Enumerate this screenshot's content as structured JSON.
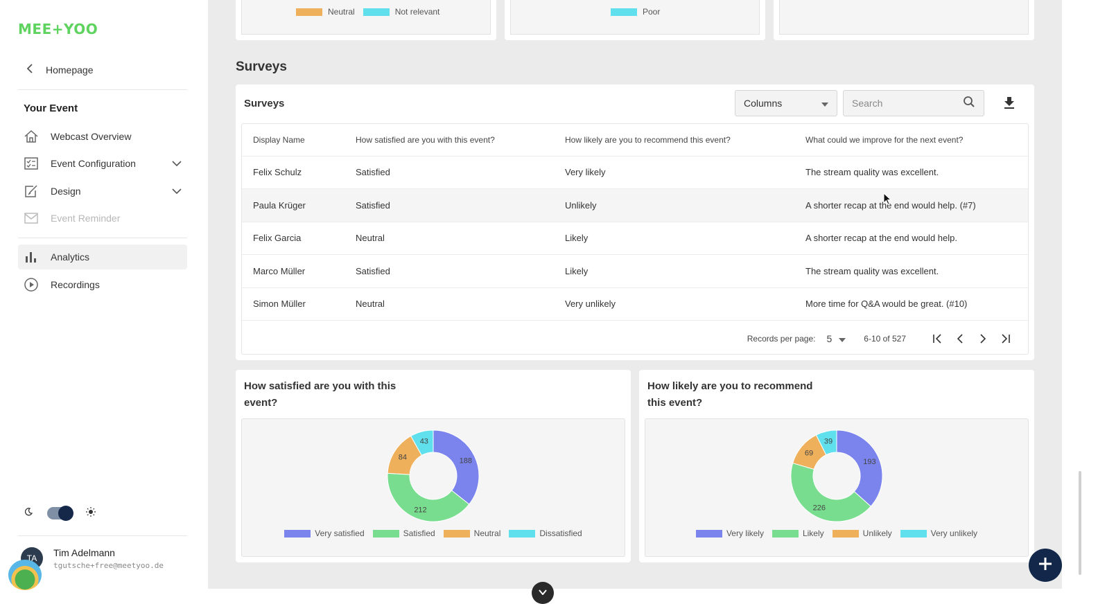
{
  "brand": {
    "logo_text": "MEE+YOO"
  },
  "nav": {
    "back_label": "Homepage",
    "section_title": "Your Event",
    "items": [
      {
        "label": "Webcast Overview",
        "icon": "home-icon"
      },
      {
        "label": "Event Configuration",
        "icon": "checklist-icon"
      },
      {
        "label": "Design",
        "icon": "edit-icon"
      },
      {
        "label": "Event Reminder",
        "icon": "mail-icon"
      },
      {
        "label": "Analytics",
        "icon": "bar-chart-icon"
      },
      {
        "label": "Recordings",
        "icon": "play-circle-icon"
      }
    ]
  },
  "user": {
    "initials": "TA",
    "name": "Tim Adelmann",
    "email": "tgutsche+free@meetyoo.de"
  },
  "top_legends": {
    "card1": [
      "Neutral",
      "Not relevant"
    ],
    "card2": [
      "Poor"
    ]
  },
  "surveys": {
    "heading": "Surveys",
    "card_title": "Surveys",
    "columns_label": "Columns",
    "search_placeholder": "Search",
    "headers": [
      "Display Name",
      "How satisfied are you with this event?",
      "How likely are you to recommend this event?",
      "What could we improve for the next event?"
    ],
    "rows": [
      [
        "Felix Schulz",
        "Satisfied",
        "Very likely",
        "The stream quality was excellent."
      ],
      [
        "Paula Krüger",
        "Satisfied",
        "Unlikely",
        "A shorter recap at the end would help. (#7)"
      ],
      [
        "Felix Garcia",
        "Neutral",
        "Likely",
        "A shorter recap at the end would help."
      ],
      [
        "Marco Müller",
        "Satisfied",
        "Likely",
        "The stream quality was excellent."
      ],
      [
        "Simon Müller",
        "Neutral",
        "Very unlikely",
        "More time for Q&A would be great. (#10)"
      ]
    ],
    "records_per_page_label": "Records per page:",
    "records_per_page": "5",
    "range": "6-10 of 527"
  },
  "colors": {
    "blue": "#7b83ec",
    "green": "#79dd8f",
    "orange": "#efb05c",
    "cyan": "#5fe0ec"
  },
  "chart_data": [
    {
      "type": "pie",
      "title": "How satisfied are you with this event?",
      "categories": [
        "Very satisfied",
        "Satisfied",
        "Neutral",
        "Dissatisfied"
      ],
      "values": [
        188,
        212,
        84,
        43
      ],
      "donut": true,
      "legend": "bottom"
    },
    {
      "type": "pie",
      "title": "How likely are you to recommend this event?",
      "categories": [
        "Very likely",
        "Likely",
        "Unlikely",
        "Very unlikely"
      ],
      "values": [
        193,
        226,
        69,
        39
      ],
      "donut": true,
      "legend": "bottom"
    }
  ]
}
